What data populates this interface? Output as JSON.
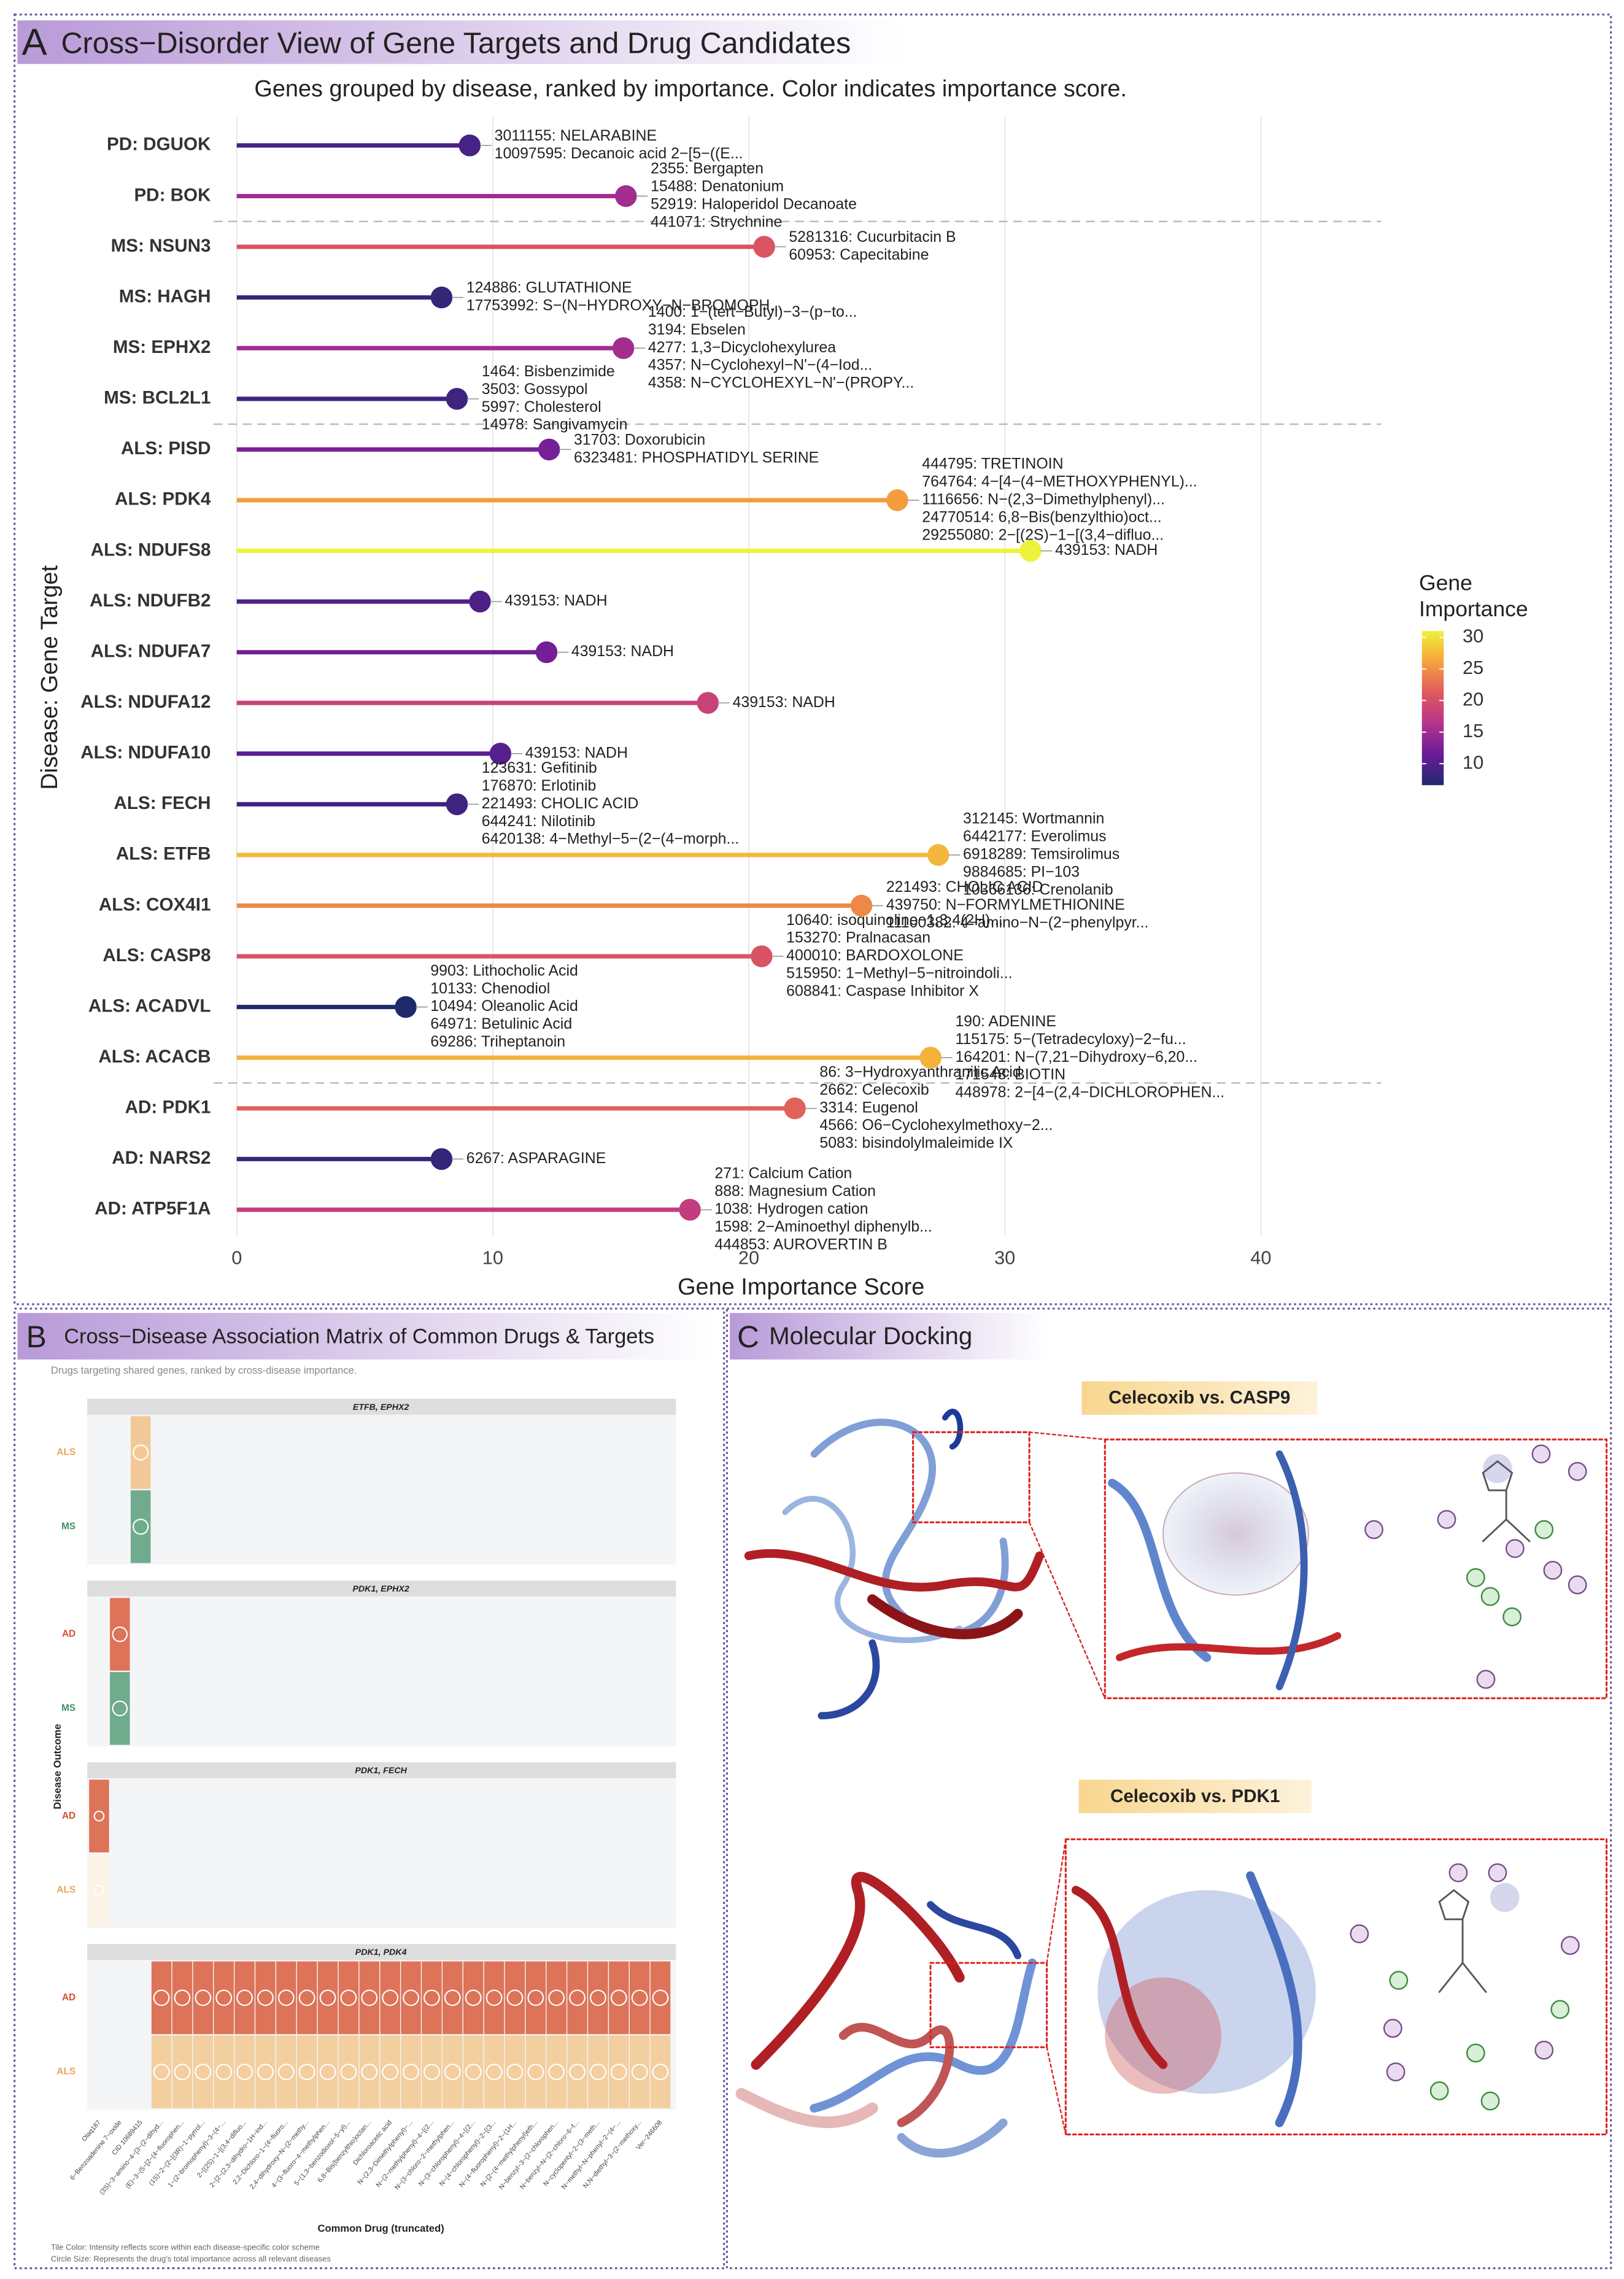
{
  "chart_data": [
    {
      "type": "lollipop",
      "panel_label": "A",
      "title": "Cross−Disorder View of Gene Targets and Drug Candidates",
      "subtitle": "Genes grouped by disease, ranked by importance. Color indicates importance score.",
      "xlabel": "Gene Importance Score",
      "ylabel": "Disease: Gene Target",
      "categories": [
        "PD: DGUOK",
        "PD: BOK",
        "MS: NSUN3",
        "MS: HAGH",
        "MS: EPHX2",
        "MS: BCL2L1",
        "ALS: PISD",
        "ALS: PDK4",
        "ALS: NDUFS8",
        "ALS: NDUFB2",
        "ALS: NDUFA7",
        "ALS: NDUFA12",
        "ALS: NDUFA10",
        "ALS: FECH",
        "ALS: ETFB",
        "ALS: COX4I1",
        "ALS: CASP8",
        "ALS: ACADVL",
        "ALS: ACACB",
        "AD: PDK1",
        "AD: NARS2",
        "AD: ATP5F1A"
      ],
      "values": [
        9.1,
        15.2,
        20.6,
        8.0,
        15.1,
        8.6,
        12.2,
        25.8,
        31.0,
        9.5,
        12.1,
        18.4,
        10.3,
        8.6,
        27.4,
        24.4,
        20.5,
        6.6,
        27.1,
        21.8,
        8.0,
        17.7
      ],
      "annotations": [
        [
          "3011155: NELARABINE",
          "10097595: Decanoic acid 2−[5−((E..."
        ],
        [
          "2355: Bergapten",
          "15488: Denatonium",
          "52919: Haloperidol Decanoate",
          "441071: Strychnine"
        ],
        [
          "5281316: Cucurbitacin B",
          "60953: Capecitabine"
        ],
        [
          "124886: GLUTATHIONE",
          "17753992: S−(N−HYDROXY−N−BROMOPH..."
        ],
        [
          "1400: 1−(tert−Butyl)−3−(p−to...",
          "3194: Ebselen",
          "4277: 1,3−Dicyclohexylurea",
          "4357: N−Cyclohexyl−N'−(4−Iod...",
          "4358: N−CYCLOHEXYL−N'−(PROPY..."
        ],
        [
          "1464: Bisbenzimide",
          "3503: Gossypol",
          "5997: Cholesterol",
          "14978: Sangivamycin"
        ],
        [
          "31703: Doxorubicin",
          "6323481: PHOSPHATIDYL SERINE"
        ],
        [
          "444795: TRETINOIN",
          "764764: 4−[4−(4−METHOXYPHENYL)...",
          "1116656: N−(2,3−Dimethylphenyl)...",
          "24770514: 6,8−Bis(benzylthio)oct...",
          "29255080: 2−[(2S)−1−[(3,4−difluo..."
        ],
        [
          "439153: NADH"
        ],
        [
          "439153: NADH"
        ],
        [
          "439153: NADH"
        ],
        [
          "439153: NADH"
        ],
        [
          "439153: NADH"
        ],
        [
          "123631: Gefitinib",
          "176870: Erlotinib",
          "221493: CHOLIC ACID",
          "644241: Nilotinib",
          "6420138: 4−Methyl−5−(2−(4−morph..."
        ],
        [
          "312145: Wortmannin",
          "6442177: Everolimus",
          "6918289: Temsirolimus",
          "9884685: PI−103",
          "10366136: Crenolanib"
        ],
        [
          "221493: CHOLIC ACID",
          "439750: N−FORMYLMETHIONINE",
          "11100382: 4−amino−N−(2−phenylpyr..."
        ],
        [
          "10640: isoquinoline−1,3,4(2H)...",
          "153270: Pralnacasan",
          "400010: BARDOXOLONE",
          "515950: 1−Methyl−5−nitroindoli...",
          "608841: Caspase Inhibitor X"
        ],
        [
          "9903: Lithocholic Acid",
          "10133: Chenodiol",
          "10494: Oleanolic Acid",
          "64971: Betulinic Acid",
          "69286: Triheptanoin"
        ],
        [
          "190: ADENINE",
          "115175: 5−(Tetradecyloxy)−2−fu...",
          "164201: N−(7,21−Dihydroxy−6,20...",
          "171548: BIOTIN",
          "448978: 2−[4−(2,4−DICHLOROPHEN..."
        ],
        [
          "86: 3−Hydroxyanthranilic Acid",
          "2662: Celecoxib",
          "3314: Eugenol",
          "4566: O6−Cyclohexylmethoxy−2...",
          "5083: bisindolylmaleimide IX"
        ],
        [
          "6267: ASPARAGINE"
        ],
        [
          "271: Calcium Cation",
          "888: Magnesium Cation",
          "1038: Hydrogen cation",
          "1598: 2−Aminoethyl diphenylb...",
          "444853: AUROVERTIN B"
        ]
      ],
      "xlim": [
        -0.9,
        44.7
      ],
      "xticks": [
        0,
        10,
        20,
        30,
        40
      ],
      "grid": true,
      "legend_title": "Gene Importance",
      "colorscale": [
        "#1f2a6b",
        "#6a1b9a",
        "#b5338a",
        "#e0595e",
        "#f5a23b",
        "#eef23a"
      ],
      "colorbar_lim": [
        6.6,
        31.0
      ],
      "colorbar_ticks": [
        10,
        15,
        20,
        25,
        30
      ]
    },
    {
      "type": "heatmap",
      "panel_label": "B",
      "title": "Cross−Disease Association Matrix of Common Drugs & Targets",
      "subtitle": "Drugs targeting shared genes, ranked by cross-disease importance.",
      "xlabel": "Common Drug (truncated)",
      "ylabel": "Disease Outcome",
      "drugs": [
        "Olaq187",
        "6−Benzoadenine 7−oxide",
        "CID 10689415",
        "(3S)−3−amino−4−[3−(2−dihyd...",
        "(E)−3−(5−[2−(4−fluorophen...",
        "(1S)−2−(2−[(3R)−1−pyrrol...",
        "1−(2−bromophenyl)−3−(4−...",
        "2−[(2S)−1−[(3,4−difluo...",
        "2−[2−(2,3−dihydro−1H−ind...",
        "2,2−Dichloro−1−(4−fluoro...",
        "2,4−dihydroxy−N−(2−methy...",
        "4−(3−fluoro−4−methylphen...",
        "5−(1,3−benzodioxol−5−yl)...",
        "6,8−Bis(benzylthio)octan...",
        "Dichloroacetic acid",
        "N−(2,3−Dimethylphenyl)−...",
        "N−(2−methylphenyl)−4−[(2...",
        "N−(3−chloro−2−methylphen...",
        "N−(3−chlorophenyl)−4−[(2...",
        "N−(4−chlorophenyl)−2−[(3...",
        "N−(4−fluorophenyl)−2−(1H...",
        "N−[2−(4−methylphenyl)eth...",
        "N−benzyl−3−(2−chlorophen...",
        "N−benzyl−N−(2−chloro−6−f...",
        "N−cyclopentyl−2−(3−meth...",
        "N−methyl−N−phenyl−2−(4−...",
        "N,N−diethyl−3−(2−methoxy...",
        "Ver−246608"
      ],
      "total_importance": [
        20,
        45,
        48,
        50,
        50,
        50,
        50,
        50,
        50,
        50,
        50,
        50,
        50,
        50,
        50,
        50,
        50,
        50,
        50,
        50,
        50,
        50,
        50,
        50,
        50,
        50,
        50,
        50
      ],
      "disease_colors": {
        "AD": "#d4502f",
        "ALS": "#eaa550",
        "MS": "#3f8f66"
      },
      "facets": [
        {
          "title": "ETFB, EPHX2",
          "rows": [
            {
              "disease": "ALS",
              "values": [
                null,
                null,
                0.6,
                null,
                null,
                null,
                null,
                null,
                null,
                null,
                null,
                null,
                null,
                null,
                null,
                null,
                null,
                null,
                null,
                null,
                null,
                null,
                null,
                null,
                null,
                null,
                null,
                null
              ]
            },
            {
              "disease": "MS",
              "values": [
                null,
                null,
                0.75,
                null,
                null,
                null,
                null,
                null,
                null,
                null,
                null,
                null,
                null,
                null,
                null,
                null,
                null,
                null,
                null,
                null,
                null,
                null,
                null,
                null,
                null,
                null,
                null,
                null
              ]
            }
          ]
        },
        {
          "title": "PDK1, EPHX2",
          "rows": [
            {
              "disease": "AD",
              "values": [
                null,
                0.8,
                null,
                null,
                null,
                null,
                null,
                null,
                null,
                null,
                null,
                null,
                null,
                null,
                null,
                null,
                null,
                null,
                null,
                null,
                null,
                null,
                null,
                null,
                null,
                null,
                null,
                null
              ]
            },
            {
              "disease": "MS",
              "values": [
                null,
                0.75,
                null,
                null,
                null,
                null,
                null,
                null,
                null,
                null,
                null,
                null,
                null,
                null,
                null,
                null,
                null,
                null,
                null,
                null,
                null,
                null,
                null,
                null,
                null,
                null,
                null,
                null
              ]
            }
          ]
        },
        {
          "title": "PDK1, FECH",
          "rows": [
            {
              "disease": "AD",
              "values": [
                0.8,
                null,
                null,
                null,
                null,
                null,
                null,
                null,
                null,
                null,
                null,
                null,
                null,
                null,
                null,
                null,
                null,
                null,
                null,
                null,
                null,
                null,
                null,
                null,
                null,
                null,
                null,
                null
              ]
            },
            {
              "disease": "ALS",
              "values": [
                0.15,
                null,
                null,
                null,
                null,
                null,
                null,
                null,
                null,
                null,
                null,
                null,
                null,
                null,
                null,
                null,
                null,
                null,
                null,
                null,
                null,
                null,
                null,
                null,
                null,
                null,
                null,
                null
              ]
            }
          ]
        },
        {
          "title": "PDK1, PDK4",
          "rows": [
            {
              "disease": "AD",
              "values": [
                null,
                null,
                null,
                0.8,
                0.8,
                0.8,
                0.8,
                0.8,
                0.8,
                0.8,
                0.8,
                0.8,
                0.8,
                0.8,
                0.8,
                0.8,
                0.8,
                0.8,
                0.8,
                0.8,
                0.8,
                0.8,
                0.8,
                0.8,
                0.8,
                0.8,
                0.8,
                0.8
              ]
            },
            {
              "disease": "ALS",
              "values": [
                null,
                null,
                null,
                0.55,
                0.55,
                0.55,
                0.55,
                0.55,
                0.55,
                0.55,
                0.55,
                0.55,
                0.55,
                0.55,
                0.55,
                0.55,
                0.55,
                0.55,
                0.55,
                0.55,
                0.55,
                0.55,
                0.55,
                0.55,
                0.55,
                0.55,
                0.55,
                0.55
              ]
            }
          ]
        }
      ],
      "caption": [
        "Tile Color: Intensity reflects score within each disease-specific color scheme",
        "Circle Size: Represents the drug's total importance across all relevant diseases"
      ]
    }
  ],
  "docking": {
    "panel_label": "C",
    "title": "Molecular Docking",
    "complexes": [
      "Celecoxib vs. CASP9",
      "Celecoxib vs. PDK1"
    ]
  }
}
